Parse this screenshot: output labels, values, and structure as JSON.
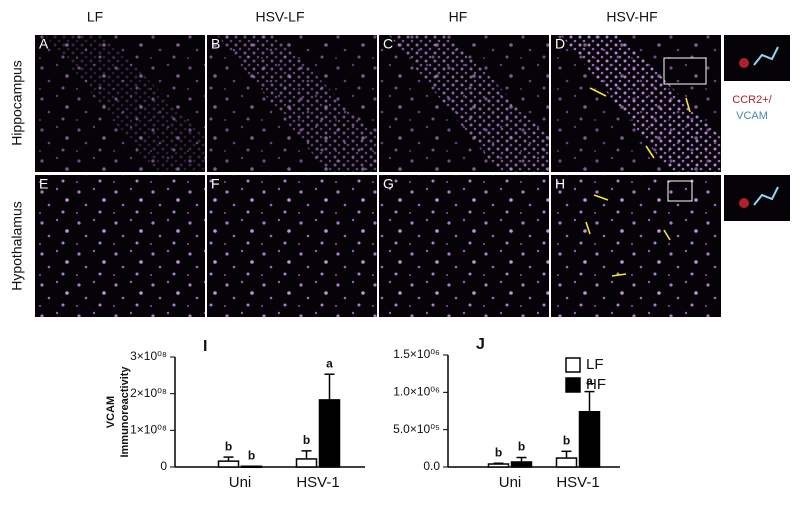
{
  "figure": {
    "columns": [
      "LF",
      "HSV-LF",
      "HF",
      "HSV-HF"
    ],
    "rows": [
      "Hippocampus",
      "Hypothalamus"
    ],
    "panels": [
      "A",
      "B",
      "C",
      "D",
      "E",
      "F",
      "G",
      "H"
    ],
    "inset_label": [
      "CCR2+/",
      "VCAM"
    ]
  },
  "chart_data": [
    {
      "type": "bar",
      "title": "I",
      "ylabel": [
        "VCAM",
        "Immunoreactivity"
      ],
      "categories": [
        "Uni",
        "HSV-1"
      ],
      "series": [
        {
          "color": "#ffffff",
          "values": [
            16000000,
            22000000
          ],
          "errors": [
            11000000,
            22000000
          ],
          "letters": [
            "b",
            "b"
          ]
        },
        {
          "color": "#000000",
          "values": [
            2000000,
            183000000
          ],
          "errors": [
            null,
            70000000
          ],
          "letters": [
            "b",
            "a"
          ]
        }
      ],
      "ylim": [
        0,
        300000000
      ],
      "yticks": [
        0,
        {
          "value": 100000000,
          "label": "1×10⁰⁸"
        },
        {
          "value": 200000000,
          "label": "2×10⁰⁸"
        },
        {
          "value": 300000000,
          "label": "3×10⁰⁸"
        }
      ]
    },
    {
      "type": "bar",
      "title": "J",
      "categories": [
        "Uni",
        "HSV-1"
      ],
      "series": [
        {
          "name": "LF",
          "color": "#ffffff",
          "values": [
            40000,
            120000
          ],
          "errors": [
            10000,
            90000
          ],
          "letters": [
            "b",
            "b"
          ]
        },
        {
          "name": "HF",
          "color": "#000000",
          "values": [
            67000,
            740000
          ],
          "errors": [
            60000,
            270000
          ],
          "letters": [
            "b",
            "a"
          ]
        }
      ],
      "ylim": [
        0,
        1500000
      ],
      "yticks": [
        {
          "value": 0,
          "label": "0.0"
        },
        {
          "value": 500000,
          "label": "5.0×10⁰⁵"
        },
        {
          "value": 1000000,
          "label": "1.0×10⁰⁶"
        },
        {
          "value": 1500000,
          "label": "1.5×10⁰⁶"
        }
      ],
      "legend": "upper right"
    }
  ]
}
